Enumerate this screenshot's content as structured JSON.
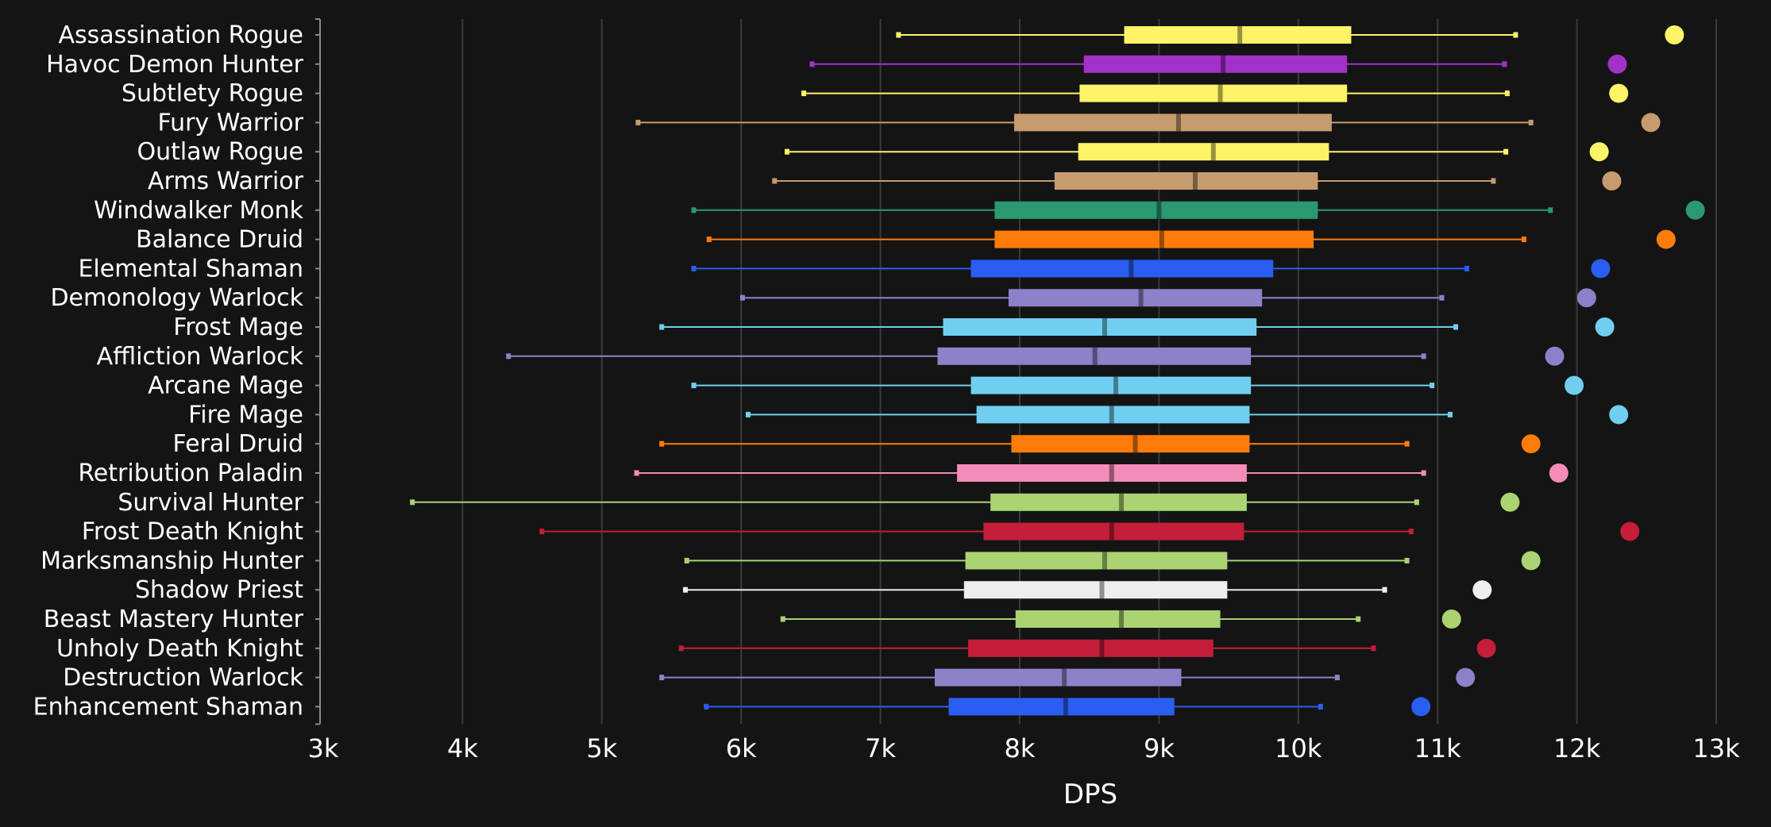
{
  "chart_data": {
    "type": "box",
    "xlabel": "DPS",
    "xlim": [
      3000,
      13000
    ],
    "xticks": [
      3000,
      4000,
      5000,
      6000,
      7000,
      8000,
      9000,
      10000,
      11000,
      12000,
      13000
    ],
    "xtick_labels": [
      "3k",
      "4k",
      "5k",
      "6k",
      "7k",
      "8k",
      "9k",
      "10k",
      "11k",
      "12k",
      "13k"
    ],
    "grid": "vertical",
    "series": [
      {
        "name": "Assassination Rogue",
        "color": "#fff468",
        "min": 7130,
        "q1": 8750,
        "median": 9580,
        "q3": 10380,
        "max": 11560,
        "top": 12700
      },
      {
        "name": "Havoc Demon Hunter",
        "color": "#a330c9",
        "min": 6510,
        "q1": 8460,
        "median": 9460,
        "q3": 10350,
        "max": 11480,
        "top": 12290
      },
      {
        "name": "Subtlety Rogue",
        "color": "#fff468",
        "min": 6450,
        "q1": 8430,
        "median": 9440,
        "q3": 10350,
        "max": 11500,
        "top": 12300
      },
      {
        "name": "Fury Warrior",
        "color": "#c69b6d",
        "min": 5260,
        "q1": 7960,
        "median": 9140,
        "q3": 10240,
        "max": 11670,
        "top": 12530
      },
      {
        "name": "Outlaw Rogue",
        "color": "#fff468",
        "min": 6330,
        "q1": 8420,
        "median": 9390,
        "q3": 10220,
        "max": 11490,
        "top": 12160
      },
      {
        "name": "Arms Warrior",
        "color": "#c69b6d",
        "min": 6240,
        "q1": 8250,
        "median": 9260,
        "q3": 10140,
        "max": 11400,
        "top": 12250
      },
      {
        "name": "Windwalker Monk",
        "color": "#2b9970",
        "min": 5660,
        "q1": 7820,
        "median": 9000,
        "q3": 10140,
        "max": 11810,
        "top": 12850
      },
      {
        "name": "Balance Druid",
        "color": "#ff7c0a",
        "min": 5770,
        "q1": 7820,
        "median": 9020,
        "q3": 10110,
        "max": 11620,
        "top": 12640
      },
      {
        "name": "Elemental Shaman",
        "color": "#2a5ef2",
        "min": 5660,
        "q1": 7650,
        "median": 8800,
        "q3": 9820,
        "max": 11210,
        "top": 12170
      },
      {
        "name": "Demonology Warlock",
        "color": "#8d81c9",
        "min": 6010,
        "q1": 7920,
        "median": 8870,
        "q3": 9740,
        "max": 11030,
        "top": 12070
      },
      {
        "name": "Frost Mage",
        "color": "#70cff0",
        "min": 5430,
        "q1": 7450,
        "median": 8610,
        "q3": 9700,
        "max": 11130,
        "top": 12200
      },
      {
        "name": "Affliction Warlock",
        "color": "#8d81c9",
        "min": 4330,
        "q1": 7410,
        "median": 8540,
        "q3": 9660,
        "max": 10900,
        "top": 11840
      },
      {
        "name": "Arcane Mage",
        "color": "#70cff0",
        "min": 5660,
        "q1": 7650,
        "median": 8690,
        "q3": 9660,
        "max": 10960,
        "top": 11980
      },
      {
        "name": "Fire Mage",
        "color": "#70cff0",
        "min": 6050,
        "q1": 7690,
        "median": 8660,
        "q3": 9650,
        "max": 11090,
        "top": 12300
      },
      {
        "name": "Feral Druid",
        "color": "#ff7c0a",
        "min": 5430,
        "q1": 7940,
        "median": 8830,
        "q3": 9650,
        "max": 10780,
        "top": 11670
      },
      {
        "name": "Retribution Paladin",
        "color": "#f48cba",
        "min": 5250,
        "q1": 7550,
        "median": 8660,
        "q3": 9630,
        "max": 10900,
        "top": 11870
      },
      {
        "name": "Survival Hunter",
        "color": "#aad372",
        "min": 3640,
        "q1": 7790,
        "median": 8730,
        "q3": 9630,
        "max": 10850,
        "top": 11520
      },
      {
        "name": "Frost Death Knight",
        "color": "#c41e3a",
        "min": 4570,
        "q1": 7740,
        "median": 8660,
        "q3": 9610,
        "max": 10810,
        "top": 12380
      },
      {
        "name": "Marksmanship Hunter",
        "color": "#aad372",
        "min": 5610,
        "q1": 7610,
        "median": 8610,
        "q3": 9490,
        "max": 10780,
        "top": 11670
      },
      {
        "name": "Shadow Priest",
        "color": "#eeeeee",
        "min": 5600,
        "q1": 7600,
        "median": 8590,
        "q3": 9490,
        "max": 10620,
        "top": 11320
      },
      {
        "name": "Beast Mastery Hunter",
        "color": "#aad372",
        "min": 6300,
        "q1": 7970,
        "median": 8730,
        "q3": 9440,
        "max": 10430,
        "top": 11100
      },
      {
        "name": "Unholy Death Knight",
        "color": "#c41e3a",
        "min": 5570,
        "q1": 7630,
        "median": 8590,
        "q3": 9390,
        "max": 10540,
        "top": 11350
      },
      {
        "name": "Destruction Warlock",
        "color": "#8d81c9",
        "min": 5430,
        "q1": 7390,
        "median": 8320,
        "q3": 9160,
        "max": 10280,
        "top": 11200
      },
      {
        "name": "Enhancement Shaman",
        "color": "#2a5ef2",
        "min": 5750,
        "q1": 7490,
        "median": 8330,
        "q3": 9110,
        "max": 10160,
        "top": 10880
      }
    ]
  }
}
